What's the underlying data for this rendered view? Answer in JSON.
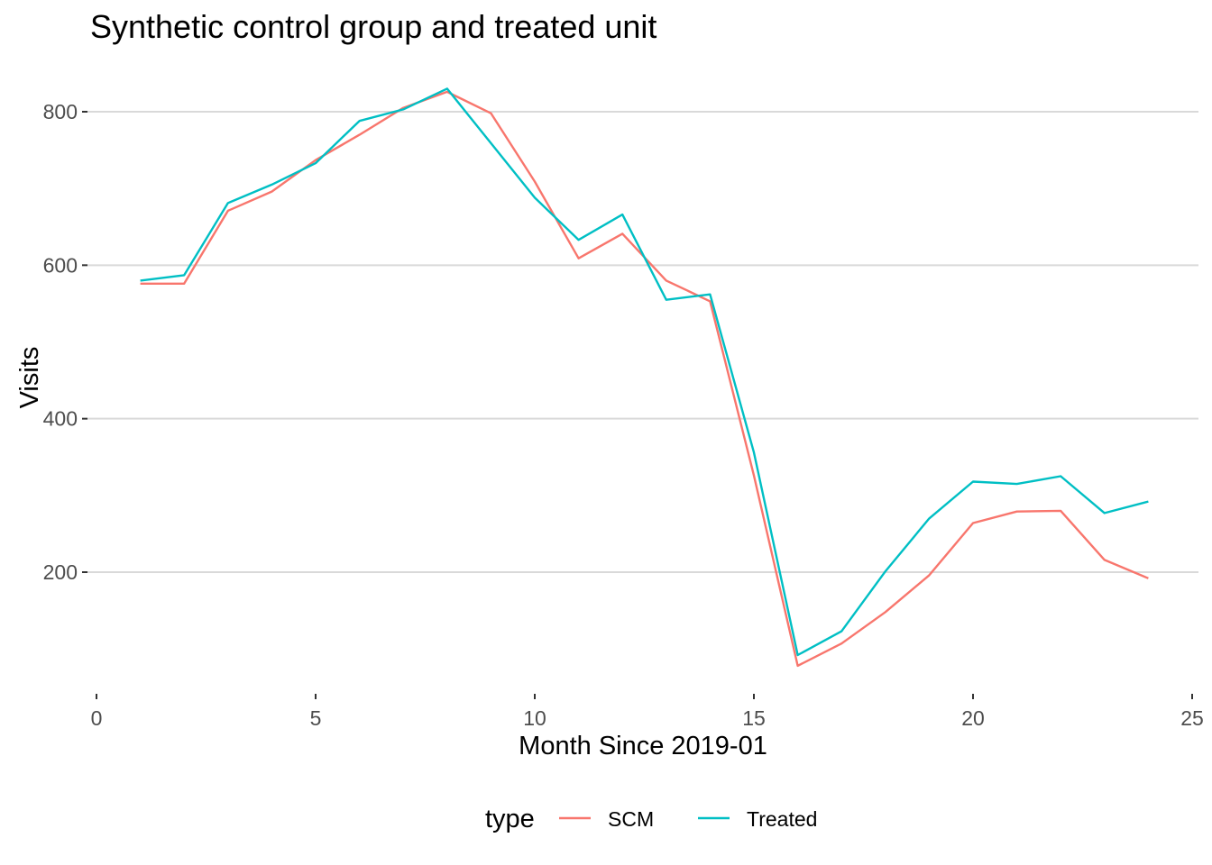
{
  "chart_data": {
    "type": "line",
    "title": "Synthetic control group and treated unit",
    "xlabel": "Month Since 2019-01",
    "ylabel": "Visits",
    "xlim": [
      0,
      25
    ],
    "ylim": [
      50,
      860
    ],
    "x_ticks": [
      "0",
      "5",
      "10",
      "15",
      "20",
      "25"
    ],
    "y_ticks": [
      "200",
      "400",
      "600",
      "800"
    ],
    "grid": "horizontal major",
    "legend": {
      "title": "type",
      "position": "bottom"
    },
    "x": [
      1,
      2,
      3,
      4,
      5,
      6,
      7,
      8,
      9,
      10,
      11,
      12,
      13,
      14,
      15,
      16,
      17,
      18,
      19,
      20,
      21,
      22,
      23,
      24
    ],
    "series": [
      {
        "name": "SCM",
        "color": "#F8766D",
        "values": [
          576,
          576,
          671,
          696,
          737,
          770,
          805,
          826,
          798,
          709,
          609,
          641,
          580,
          553,
          326,
          78,
          107,
          148,
          196,
          264,
          279,
          280,
          216,
          192
        ]
      },
      {
        "name": "Treated",
        "color": "#00BFC4",
        "values": [
          580,
          587,
          681,
          705,
          733,
          788,
          803,
          830,
          759,
          688,
          633,
          666,
          555,
          562,
          356,
          92,
          123,
          201,
          270,
          318,
          315,
          325,
          277,
          292
        ]
      }
    ]
  }
}
